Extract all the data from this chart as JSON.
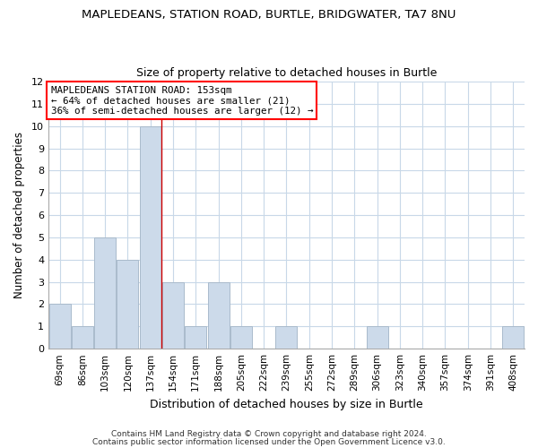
{
  "title": "MAPLEDEANS, STATION ROAD, BURTLE, BRIDGWATER, TA7 8NU",
  "subtitle": "Size of property relative to detached houses in Burtle",
  "xlabel": "Distribution of detached houses by size in Burtle",
  "ylabel": "Number of detached properties",
  "bar_labels": [
    "69sqm",
    "86sqm",
    "103sqm",
    "120sqm",
    "137sqm",
    "154sqm",
    "171sqm",
    "188sqm",
    "205sqm",
    "222sqm",
    "239sqm",
    "255sqm",
    "272sqm",
    "289sqm",
    "306sqm",
    "323sqm",
    "340sqm",
    "357sqm",
    "374sqm",
    "391sqm",
    "408sqm"
  ],
  "bar_values": [
    2,
    1,
    5,
    4,
    10,
    3,
    1,
    3,
    1,
    0,
    1,
    0,
    0,
    0,
    1,
    0,
    0,
    0,
    0,
    0,
    1
  ],
  "bar_color": "#ccdaea",
  "bar_edge_color": "#aabbcc",
  "grid_color": "#c8d8e8",
  "reference_line_color": "#cc0000",
  "reference_line_x": 4.5,
  "ylim": [
    0,
    12
  ],
  "yticks": [
    0,
    1,
    2,
    3,
    4,
    5,
    6,
    7,
    8,
    9,
    10,
    11,
    12
  ],
  "annotation_title": "MAPLEDEANS STATION ROAD: 153sqm",
  "annotation_line1": "← 64% of detached houses are smaller (21)",
  "annotation_line2": "36% of semi-detached houses are larger (12) →",
  "footnote1": "Contains HM Land Registry data © Crown copyright and database right 2024.",
  "footnote2": "Contains public sector information licensed under the Open Government Licence v3.0.",
  "title_fontsize": 9.5,
  "subtitle_fontsize": 9,
  "xlabel_fontsize": 9,
  "ylabel_fontsize": 8.5,
  "xtick_fontsize": 7.5,
  "ytick_fontsize": 8,
  "annotation_fontsize": 7.8,
  "footnote_fontsize": 6.5
}
